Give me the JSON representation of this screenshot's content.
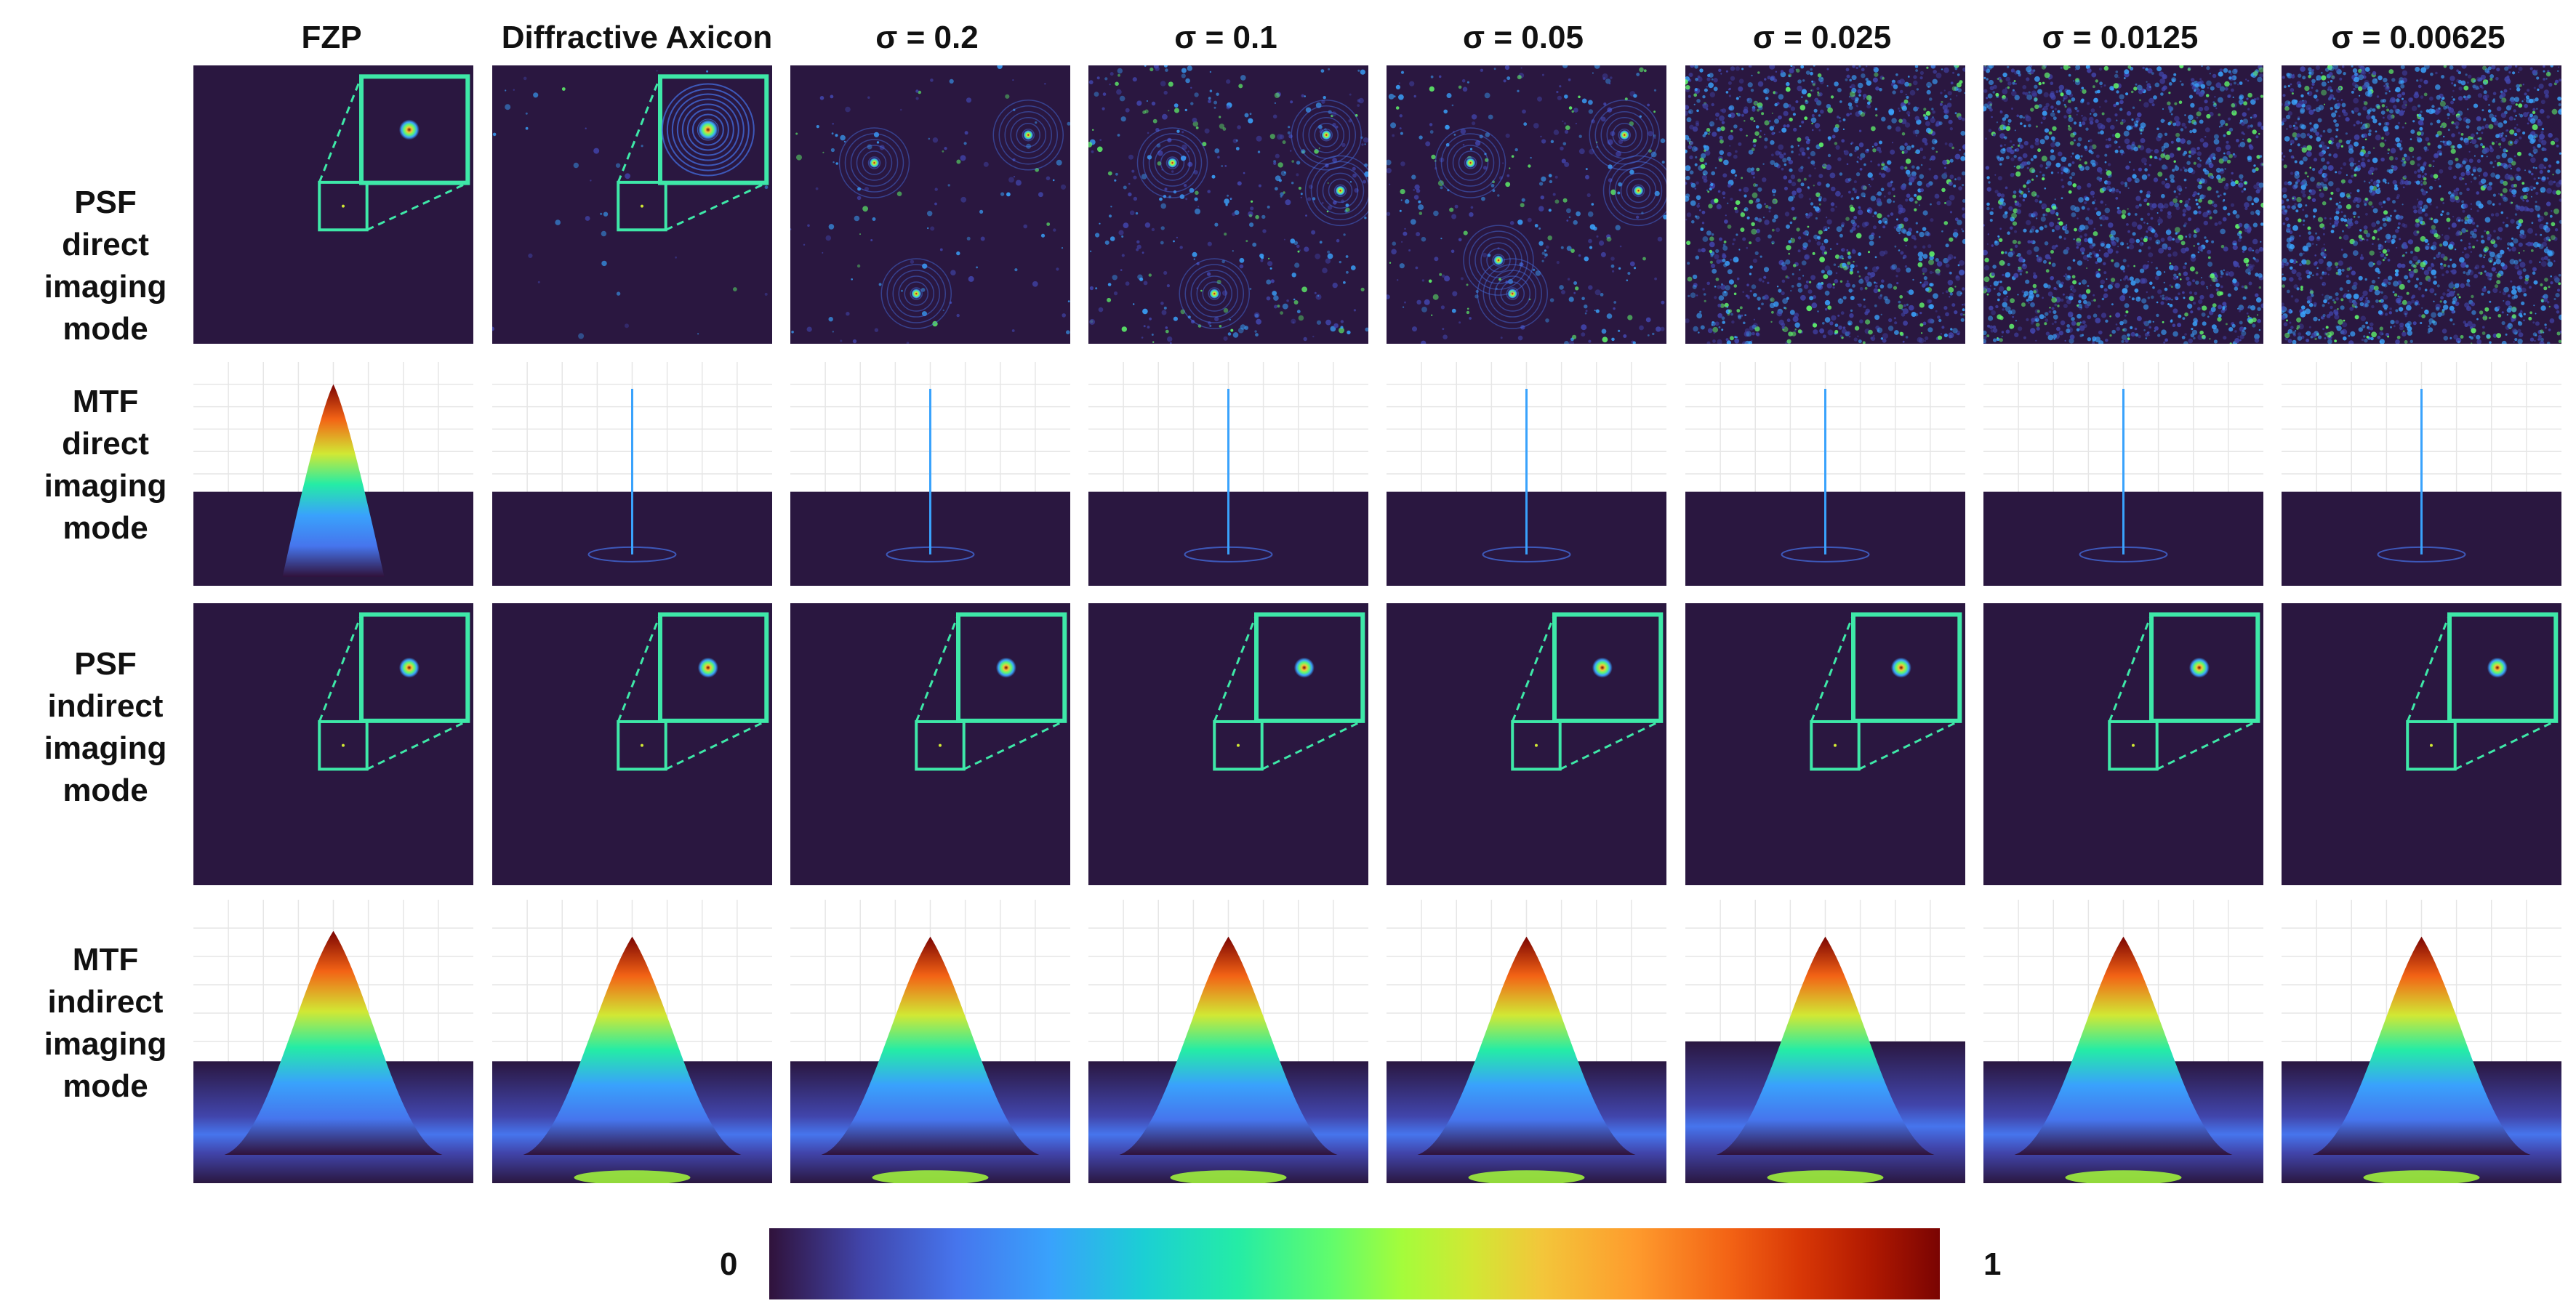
{
  "columns": [
    {
      "id": "fzp",
      "label": "FZP"
    },
    {
      "id": "axicon",
      "label": "Diffractive Axicon"
    },
    {
      "id": "s02",
      "label": "σ = 0.2"
    },
    {
      "id": "s01",
      "label": "σ = 0.1"
    },
    {
      "id": "s005",
      "label": "σ = 0.05"
    },
    {
      "id": "s0025",
      "label": "σ = 0.025"
    },
    {
      "id": "s00125",
      "label": "σ = 0.0125"
    },
    {
      "id": "s000625",
      "label": "σ = 0.00625"
    }
  ],
  "rows": [
    {
      "id": "psf-direct",
      "type": "psf",
      "lines": [
        "PSF",
        "direct",
        "imaging",
        "mode"
      ]
    },
    {
      "id": "mtf-direct",
      "type": "mtf",
      "lines": [
        "MTF",
        "direct",
        "imaging",
        "mode"
      ]
    },
    {
      "id": "psf-indirect",
      "type": "psf",
      "lines": [
        "PSF",
        "indirect",
        "imaging",
        "mode"
      ]
    },
    {
      "id": "mtf-indirect",
      "type": "mtf",
      "lines": [
        "MTF",
        "indirect",
        "imaging",
        "mode"
      ]
    }
  ],
  "colorbar": {
    "min_label": "0",
    "max_label": "1",
    "colormap": "turbo"
  },
  "colors": {
    "panel_background": "#2a1740",
    "inset_border": "#3ee8a8"
  }
}
